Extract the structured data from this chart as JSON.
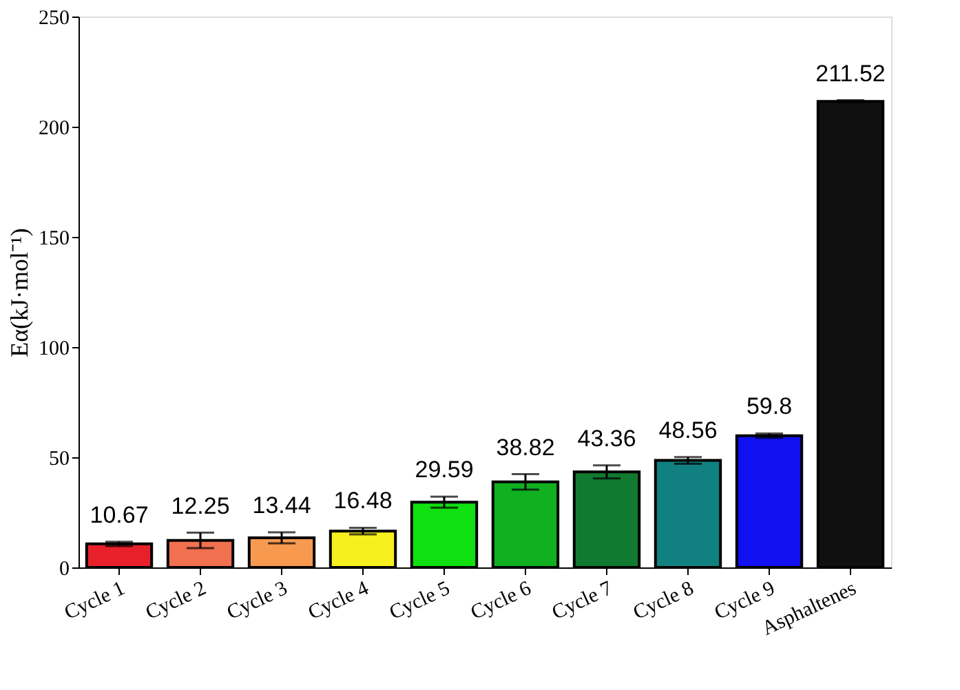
{
  "chart_data": {
    "type": "bar",
    "ylabel": "Eα(kJ·mol⁻¹)",
    "categories": [
      "Cycle 1",
      "Cycle 2",
      "Cycle 3",
      "Cycle 4",
      "Cycle 5",
      "Cycle 6",
      "Cycle 7",
      "Cycle 8",
      "Cycle 9",
      "Asphaltenes"
    ],
    "values": [
      10.67,
      12.25,
      13.44,
      16.48,
      29.59,
      38.82,
      43.36,
      48.56,
      59.8,
      211.52
    ],
    "colors": [
      "#e8202a",
      "#f07050",
      "#f79a50",
      "#f7f020",
      "#10e010",
      "#10b020",
      "#107a30",
      "#108080",
      "#1010f0",
      "#101010"
    ],
    "errors": [
      1,
      3.5,
      2.5,
      1.5,
      2.5,
      3.5,
      3,
      1.5,
      1,
      0.5
    ],
    "ylim": [
      0,
      250
    ],
    "yticks": [
      0,
      50,
      100,
      150,
      200,
      250
    ],
    "grid": false,
    "data_labels": true
  }
}
